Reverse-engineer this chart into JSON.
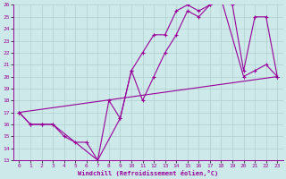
{
  "xlabel": "Windchill (Refroidissement éolien,°C)",
  "xlim": [
    -0.5,
    23.5
  ],
  "ylim": [
    13,
    26
  ],
  "xticks": [
    0,
    1,
    2,
    3,
    4,
    5,
    6,
    7,
    8,
    9,
    10,
    11,
    12,
    13,
    14,
    15,
    16,
    17,
    18,
    19,
    20,
    21,
    22,
    23
  ],
  "yticks": [
    13,
    14,
    15,
    16,
    17,
    18,
    19,
    20,
    21,
    22,
    23,
    24,
    25,
    26
  ],
  "bg_color": "#cde9e9",
  "line_color": "#990099",
  "grid_color": "#b0d0d0",
  "line1_x": [
    0,
    1,
    2,
    3,
    4,
    5,
    6,
    7,
    9,
    10,
    11,
    12,
    13,
    14,
    15,
    16,
    17,
    18,
    19,
    20,
    21,
    22,
    23
  ],
  "line1_y": [
    17,
    16,
    16,
    16,
    15,
    14.5,
    14.5,
    13,
    16.5,
    20.5,
    22,
    23.5,
    23.5,
    25.5,
    26,
    25.5,
    26,
    26.5,
    26,
    20.5,
    25,
    25,
    20
  ],
  "line2_x": [
    0,
    1,
    2,
    3,
    7,
    8,
    9,
    10,
    11,
    12,
    13,
    14,
    15,
    16,
    17,
    18,
    20,
    21,
    22,
    23
  ],
  "line2_y": [
    17,
    16,
    16,
    16,
    13,
    18,
    16.5,
    20.5,
    18,
    20,
    22,
    23.5,
    25.5,
    25,
    26,
    26.5,
    20,
    20.5,
    21,
    20
  ],
  "line3_x": [
    0,
    23
  ],
  "line3_y": [
    17,
    20
  ]
}
